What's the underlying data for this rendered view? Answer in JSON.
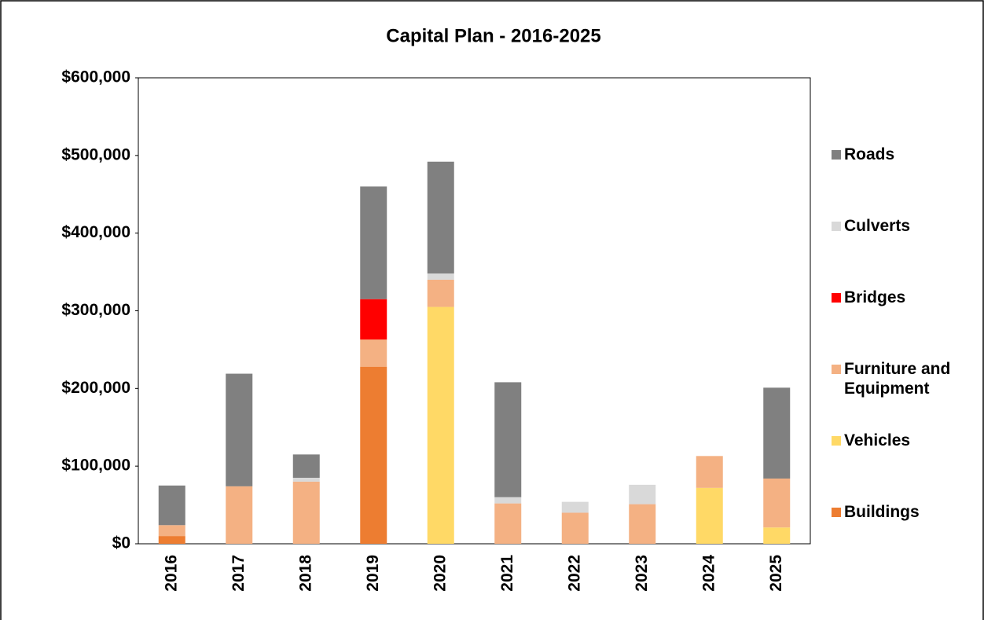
{
  "chart_data": {
    "type": "stacked_bar",
    "title": "Capital Plan - 2016-2025",
    "categories": [
      "2016",
      "2017",
      "2018",
      "2019",
      "2020",
      "2021",
      "2022",
      "2023",
      "2024",
      "2025"
    ],
    "series": [
      {
        "name": "Buildings",
        "color": "#ed7d31",
        "values": [
          10000,
          null,
          null,
          228000,
          null,
          null,
          null,
          null,
          null,
          null
        ]
      },
      {
        "name": "Vehicles",
        "color": "#ffd966",
        "values": [
          null,
          null,
          null,
          null,
          305000,
          null,
          null,
          null,
          72000,
          21000
        ]
      },
      {
        "name": "Furniture and Equipment",
        "color": "#f4b183",
        "values": [
          14000,
          74000,
          80000,
          35000,
          35000,
          52000,
          40000,
          51000,
          41000,
          63000
        ]
      },
      {
        "name": "Bridges",
        "color": "#ff0000",
        "values": [
          null,
          null,
          null,
          52000,
          null,
          null,
          null,
          null,
          null,
          null
        ]
      },
      {
        "name": "Culverts",
        "color": "#d9d9d9",
        "values": [
          null,
          null,
          5000,
          null,
          8000,
          8000,
          14000,
          25000,
          null,
          null
        ]
      },
      {
        "name": "Roads",
        "color": "#808080",
        "values": [
          51000,
          145000,
          30000,
          145000,
          144000,
          148000,
          null,
          null,
          null,
          117000
        ]
      }
    ],
    "ylim": [
      0,
      600000
    ],
    "yticks": [
      {
        "value": 0,
        "label": "$0"
      },
      {
        "value": 100000,
        "label": "$100,000"
      },
      {
        "value": 200000,
        "label": "$200,000"
      },
      {
        "value": 300000,
        "label": "$300,000"
      },
      {
        "value": 400000,
        "label": "$400,000"
      },
      {
        "value": 500000,
        "label": "$500,000"
      },
      {
        "value": 600000,
        "label": "$600,000"
      }
    ],
    "grid": false,
    "legend": "right"
  }
}
